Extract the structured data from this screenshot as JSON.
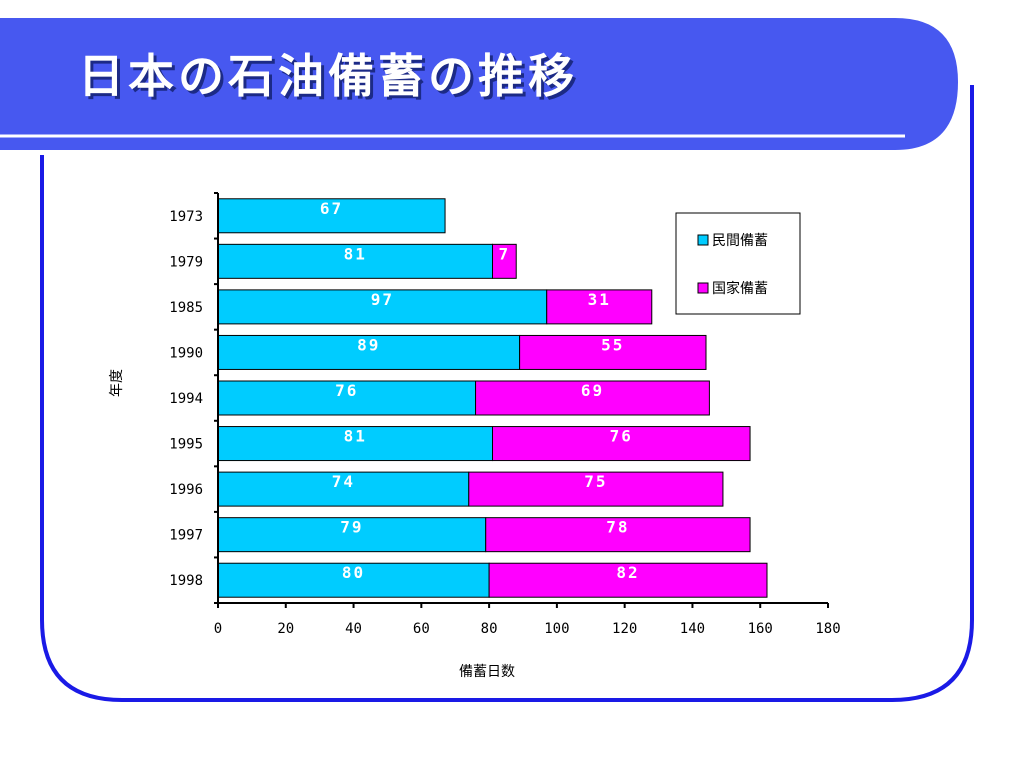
{
  "slide": {
    "title": "日本の石油備蓄の推移",
    "colors": {
      "banner": "#4758f0",
      "frame": "#1a1ae6",
      "title_shadow": "#1c2a86"
    }
  },
  "chart_data": {
    "type": "bar",
    "orientation": "horizontal",
    "stacked": true,
    "title": "",
    "xlabel": "備蓄日数",
    "ylabel": "年度",
    "categories": [
      "1973",
      "1979",
      "1985",
      "1990",
      "1994",
      "1995",
      "1996",
      "1997",
      "1998"
    ],
    "series": [
      {
        "name": "民間備蓄",
        "color": "#00ccff",
        "values": [
          67,
          81,
          97,
          89,
          76,
          81,
          74,
          79,
          80
        ]
      },
      {
        "name": "国家備蓄",
        "color": "#ff00ff",
        "values": [
          0,
          7,
          31,
          55,
          69,
          76,
          75,
          78,
          82
        ]
      }
    ],
    "xlim": [
      0,
      180
    ],
    "xticks": [
      0,
      20,
      40,
      60,
      80,
      100,
      120,
      140,
      160,
      180
    ],
    "grid": false,
    "legend": "right",
    "data_labels": true
  }
}
